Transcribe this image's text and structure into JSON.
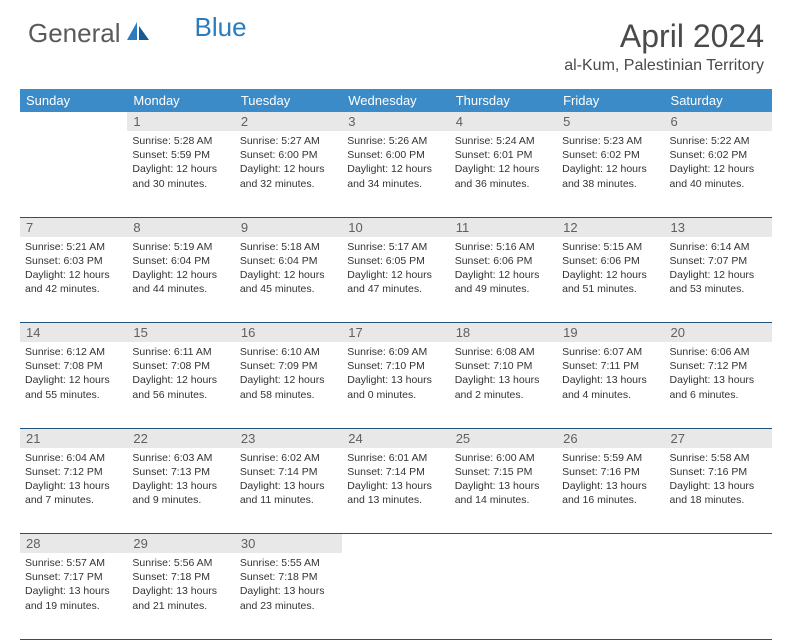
{
  "logo": {
    "text1": "General",
    "text2": "Blue"
  },
  "title": "April 2024",
  "location": "al-Kum, Palestinian Territory",
  "colors": {
    "header_bg": "#3b8bc8",
    "header_text": "#ffffff",
    "daynum_bg": "#e8e8e8",
    "daynum_text": "#606060",
    "border": "#24537a",
    "body_text": "#333333",
    "title_text": "#4a4a4a",
    "logo_gray": "#5a5a5a",
    "logo_blue": "#2b7bbf"
  },
  "weekdays": [
    "Sunday",
    "Monday",
    "Tuesday",
    "Wednesday",
    "Thursday",
    "Friday",
    "Saturday"
  ],
  "weeks": [
    {
      "days": [
        {
          "num": "",
          "sunrise": "",
          "sunset": "",
          "daylight": ""
        },
        {
          "num": "1",
          "sunrise": "Sunrise: 5:28 AM",
          "sunset": "Sunset: 5:59 PM",
          "daylight": "Daylight: 12 hours and 30 minutes."
        },
        {
          "num": "2",
          "sunrise": "Sunrise: 5:27 AM",
          "sunset": "Sunset: 6:00 PM",
          "daylight": "Daylight: 12 hours and 32 minutes."
        },
        {
          "num": "3",
          "sunrise": "Sunrise: 5:26 AM",
          "sunset": "Sunset: 6:00 PM",
          "daylight": "Daylight: 12 hours and 34 minutes."
        },
        {
          "num": "4",
          "sunrise": "Sunrise: 5:24 AM",
          "sunset": "Sunset: 6:01 PM",
          "daylight": "Daylight: 12 hours and 36 minutes."
        },
        {
          "num": "5",
          "sunrise": "Sunrise: 5:23 AM",
          "sunset": "Sunset: 6:02 PM",
          "daylight": "Daylight: 12 hours and 38 minutes."
        },
        {
          "num": "6",
          "sunrise": "Sunrise: 5:22 AM",
          "sunset": "Sunset: 6:02 PM",
          "daylight": "Daylight: 12 hours and 40 minutes."
        }
      ]
    },
    {
      "days": [
        {
          "num": "7",
          "sunrise": "Sunrise: 5:21 AM",
          "sunset": "Sunset: 6:03 PM",
          "daylight": "Daylight: 12 hours and 42 minutes."
        },
        {
          "num": "8",
          "sunrise": "Sunrise: 5:19 AM",
          "sunset": "Sunset: 6:04 PM",
          "daylight": "Daylight: 12 hours and 44 minutes."
        },
        {
          "num": "9",
          "sunrise": "Sunrise: 5:18 AM",
          "sunset": "Sunset: 6:04 PM",
          "daylight": "Daylight: 12 hours and 45 minutes."
        },
        {
          "num": "10",
          "sunrise": "Sunrise: 5:17 AM",
          "sunset": "Sunset: 6:05 PM",
          "daylight": "Daylight: 12 hours and 47 minutes."
        },
        {
          "num": "11",
          "sunrise": "Sunrise: 5:16 AM",
          "sunset": "Sunset: 6:06 PM",
          "daylight": "Daylight: 12 hours and 49 minutes."
        },
        {
          "num": "12",
          "sunrise": "Sunrise: 5:15 AM",
          "sunset": "Sunset: 6:06 PM",
          "daylight": "Daylight: 12 hours and 51 minutes."
        },
        {
          "num": "13",
          "sunrise": "Sunrise: 6:14 AM",
          "sunset": "Sunset: 7:07 PM",
          "daylight": "Daylight: 12 hours and 53 minutes."
        }
      ]
    },
    {
      "days": [
        {
          "num": "14",
          "sunrise": "Sunrise: 6:12 AM",
          "sunset": "Sunset: 7:08 PM",
          "daylight": "Daylight: 12 hours and 55 minutes."
        },
        {
          "num": "15",
          "sunrise": "Sunrise: 6:11 AM",
          "sunset": "Sunset: 7:08 PM",
          "daylight": "Daylight: 12 hours and 56 minutes."
        },
        {
          "num": "16",
          "sunrise": "Sunrise: 6:10 AM",
          "sunset": "Sunset: 7:09 PM",
          "daylight": "Daylight: 12 hours and 58 minutes."
        },
        {
          "num": "17",
          "sunrise": "Sunrise: 6:09 AM",
          "sunset": "Sunset: 7:10 PM",
          "daylight": "Daylight: 13 hours and 0 minutes."
        },
        {
          "num": "18",
          "sunrise": "Sunrise: 6:08 AM",
          "sunset": "Sunset: 7:10 PM",
          "daylight": "Daylight: 13 hours and 2 minutes."
        },
        {
          "num": "19",
          "sunrise": "Sunrise: 6:07 AM",
          "sunset": "Sunset: 7:11 PM",
          "daylight": "Daylight: 13 hours and 4 minutes."
        },
        {
          "num": "20",
          "sunrise": "Sunrise: 6:06 AM",
          "sunset": "Sunset: 7:12 PM",
          "daylight": "Daylight: 13 hours and 6 minutes."
        }
      ]
    },
    {
      "days": [
        {
          "num": "21",
          "sunrise": "Sunrise: 6:04 AM",
          "sunset": "Sunset: 7:12 PM",
          "daylight": "Daylight: 13 hours and 7 minutes."
        },
        {
          "num": "22",
          "sunrise": "Sunrise: 6:03 AM",
          "sunset": "Sunset: 7:13 PM",
          "daylight": "Daylight: 13 hours and 9 minutes."
        },
        {
          "num": "23",
          "sunrise": "Sunrise: 6:02 AM",
          "sunset": "Sunset: 7:14 PM",
          "daylight": "Daylight: 13 hours and 11 minutes."
        },
        {
          "num": "24",
          "sunrise": "Sunrise: 6:01 AM",
          "sunset": "Sunset: 7:14 PM",
          "daylight": "Daylight: 13 hours and 13 minutes."
        },
        {
          "num": "25",
          "sunrise": "Sunrise: 6:00 AM",
          "sunset": "Sunset: 7:15 PM",
          "daylight": "Daylight: 13 hours and 14 minutes."
        },
        {
          "num": "26",
          "sunrise": "Sunrise: 5:59 AM",
          "sunset": "Sunset: 7:16 PM",
          "daylight": "Daylight: 13 hours and 16 minutes."
        },
        {
          "num": "27",
          "sunrise": "Sunrise: 5:58 AM",
          "sunset": "Sunset: 7:16 PM",
          "daylight": "Daylight: 13 hours and 18 minutes."
        }
      ]
    },
    {
      "days": [
        {
          "num": "28",
          "sunrise": "Sunrise: 5:57 AM",
          "sunset": "Sunset: 7:17 PM",
          "daylight": "Daylight: 13 hours and 19 minutes."
        },
        {
          "num": "29",
          "sunrise": "Sunrise: 5:56 AM",
          "sunset": "Sunset: 7:18 PM",
          "daylight": "Daylight: 13 hours and 21 minutes."
        },
        {
          "num": "30",
          "sunrise": "Sunrise: 5:55 AM",
          "sunset": "Sunset: 7:18 PM",
          "daylight": "Daylight: 13 hours and 23 minutes."
        },
        {
          "num": "",
          "sunrise": "",
          "sunset": "",
          "daylight": ""
        },
        {
          "num": "",
          "sunrise": "",
          "sunset": "",
          "daylight": ""
        },
        {
          "num": "",
          "sunrise": "",
          "sunset": "",
          "daylight": ""
        },
        {
          "num": "",
          "sunrise": "",
          "sunset": "",
          "daylight": ""
        }
      ]
    }
  ]
}
